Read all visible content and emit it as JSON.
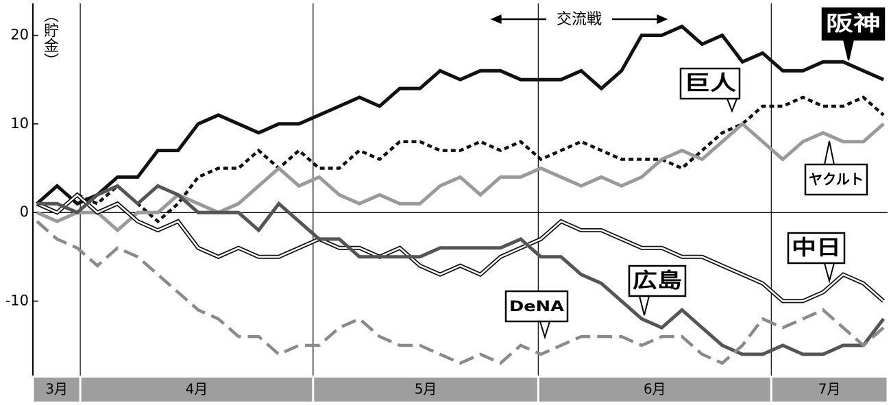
{
  "chart_data": {
    "type": "line",
    "y_label": "（貯金）",
    "categories": [
      null,
      null,
      null,
      null,
      null,
      null,
      null,
      null,
      null,
      null,
      null,
      null,
      null,
      null,
      null,
      null,
      null,
      null,
      null,
      null,
      null,
      null,
      null,
      null,
      null,
      null,
      null,
      null,
      null,
      null,
      null,
      null,
      null,
      null,
      null,
      null,
      null,
      null,
      null,
      null,
      null,
      null,
      null
    ],
    "xlim": [
      -0.2,
      42.2
    ],
    "ylim": [
      -18.4,
      23.6
    ],
    "yticks": [
      20,
      10,
      0,
      -10
    ],
    "zero_line": true,
    "months": [
      {
        "label": "3月",
        "start": -0.2,
        "end": 2.15
      },
      {
        "label": "4月",
        "start": 2.15,
        "end": 13.7
      },
      {
        "label": "5月",
        "start": 13.7,
        "end": 24.87
      },
      {
        "label": "6月",
        "start": 24.87,
        "end": 36.43
      },
      {
        "label": "7月",
        "start": 36.43,
        "end": 42.2
      }
    ],
    "interleague": {
      "label": "交流戦",
      "start": 22.5,
      "end": 31.3
    },
    "series": [
      {
        "name": "阪神",
        "color": "#111111",
        "line_style": "solid",
        "values": [
          1,
          3,
          1,
          2,
          4,
          4,
          7,
          7,
          10,
          11,
          10,
          9,
          10,
          10,
          11,
          12,
          13,
          12,
          14,
          14,
          16,
          15,
          16,
          16,
          15,
          15,
          15,
          16,
          14,
          16,
          20,
          20,
          21,
          19,
          20,
          17,
          18,
          16,
          16,
          17,
          17,
          16,
          15
        ]
      },
      {
        "name": "巨人",
        "color": "#111111",
        "line_style": "dotted",
        "values": [
          1,
          0,
          2,
          1,
          3,
          1,
          -1,
          1,
          4,
          5,
          5,
          7,
          5,
          7,
          5,
          5,
          7,
          6,
          8,
          8,
          7,
          7,
          8,
          7,
          8,
          6,
          7,
          8,
          7,
          6,
          6,
          6,
          5,
          7,
          9,
          10,
          12,
          12,
          13,
          12,
          12,
          13,
          11
        ]
      },
      {
        "name": "ヤクルト",
        "color": "#9a9a9a",
        "line_style": "solid",
        "values": [
          0,
          -1,
          0,
          0,
          -2,
          0,
          0,
          2,
          1,
          0,
          1,
          3,
          5,
          3,
          4,
          2,
          1,
          2,
          1,
          1,
          3,
          4,
          2,
          4,
          4,
          5,
          4,
          3,
          4,
          3,
          4,
          6,
          7,
          6,
          8,
          10,
          8,
          6,
          8,
          9,
          8,
          8,
          10
        ]
      },
      {
        "name": "中日",
        "color": "#111111",
        "line_style": "double",
        "values": [
          1,
          0,
          2,
          0,
          1,
          -1,
          -2,
          -1,
          -4,
          -5,
          -4,
          -5,
          -5,
          -4,
          -3,
          -4,
          -4,
          -5,
          -4,
          -6,
          -7,
          -6,
          -7,
          -5,
          -4,
          -3,
          -1,
          -2,
          -2,
          -3,
          -4,
          -4,
          -5,
          -5,
          -6,
          -7,
          -8,
          -10,
          -10,
          -9,
          -7,
          -8,
          -10
        ]
      },
      {
        "name": "広島",
        "color": "#555555",
        "line_style": "solid",
        "values": [
          1,
          1,
          0,
          2,
          3,
          1,
          3,
          2,
          0,
          0,
          0,
          -2,
          1,
          -1,
          -3,
          -3,
          -5,
          -5,
          -5,
          -5,
          -4,
          -4,
          -4,
          -4,
          -3,
          -5,
          -5,
          -7,
          -8,
          -10,
          -12,
          -13,
          -11,
          -13,
          -15,
          -16,
          -16,
          -15,
          -16,
          -16,
          -15,
          -15,
          -12
        ]
      },
      {
        "name": "DeNA",
        "color": "#8a8a8a",
        "line_style": "dashed",
        "values": [
          -1,
          -3,
          -4,
          -6,
          -4,
          -5,
          -7,
          -9,
          -11,
          -12,
          -14,
          -14,
          -16,
          -15,
          -15,
          -13,
          -12,
          -14,
          -15,
          -15,
          -16,
          -17,
          -16,
          -17,
          -15,
          -16,
          -15,
          -14,
          -14,
          -14,
          -15,
          -14,
          -14,
          -16,
          -17,
          -15,
          -12,
          -13,
          -12,
          -11,
          -13,
          -15,
          -13
        ]
      }
    ]
  }
}
